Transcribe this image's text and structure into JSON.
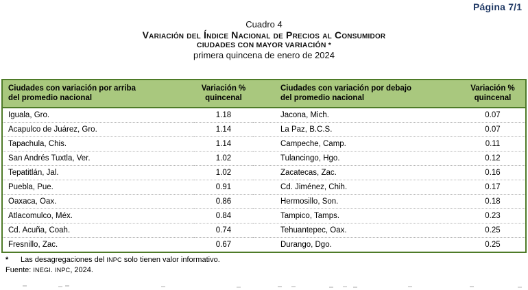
{
  "page": {
    "label": "Página 7/1"
  },
  "caption": {
    "number": "Cuadro 4",
    "title": "Variación del Índice Nacional de Precios al Consumidor",
    "subtitle": "CIUDADES CON MAYOR VARIACIÓN *",
    "period": "primera quincena de enero de 2024"
  },
  "table": {
    "headers": [
      {
        "line1": "Ciudades con variación por arriba",
        "line2": "del promedio nacional"
      },
      {
        "line1": "Variación %",
        "line2": "quincenal"
      },
      {
        "line1": "Ciudades con variación por debajo",
        "line2": "del promedio nacional"
      },
      {
        "line1": "Variación %",
        "line2": "quincenal"
      }
    ],
    "rows": [
      {
        "city_above": "Iguala, Gro.",
        "value_above": "1.18",
        "city_below": "Jacona, Mich.",
        "value_below": "0.07"
      },
      {
        "city_above": "Acapulco de Juárez, Gro.",
        "value_above": "1.14",
        "city_below": "La Paz, B.C.S.",
        "value_below": "0.07"
      },
      {
        "city_above": "Tapachula, Chis.",
        "value_above": "1.14",
        "city_below": "Campeche, Camp.",
        "value_below": "0.11"
      },
      {
        "city_above": "San Andrés Tuxtla, Ver.",
        "value_above": "1.02",
        "city_below": "Tulancingo, Hgo.",
        "value_below": "0.12"
      },
      {
        "city_above": "Tepatitlán, Jal.",
        "value_above": "1.02",
        "city_below": "Zacatecas, Zac.",
        "value_below": "0.16"
      },
      {
        "city_above": "Puebla, Pue.",
        "value_above": "0.91",
        "city_below": "Cd. Jiménez, Chih.",
        "value_below": "0.17"
      },
      {
        "city_above": "Oaxaca, Oax.",
        "value_above": "0.86",
        "city_below": "Hermosillo, Son.",
        "value_below": "0.18"
      },
      {
        "city_above": "Atlacomulco, Méx.",
        "value_above": "0.84",
        "city_below": "Tampico, Tamps.",
        "value_below": "0.23"
      },
      {
        "city_above": "Cd. Acuña, Coah.",
        "value_above": "0.74",
        "city_below": "Tehuantepec, Oax.",
        "value_below": "0.25"
      },
      {
        "city_above": "Fresnillo, Zac.",
        "value_above": "0.67",
        "city_below": "Durango, Dgo.",
        "value_below": "0.25"
      }
    ]
  },
  "footnotes": {
    "note": {
      "marker": "*",
      "pre": "Las desagregaciones del ",
      "acronym": "INPC",
      "post": " solo tienen valor informativo."
    },
    "source": {
      "pre": "Fuente: ",
      "acronym1": "INEGI",
      "mid": ". ",
      "acronym2": "INPC",
      "post": ", 2024."
    }
  },
  "colors": {
    "header_green": "#A9C87E",
    "border_green": "#4E7B28",
    "page_label_navy": "#1F3864"
  }
}
